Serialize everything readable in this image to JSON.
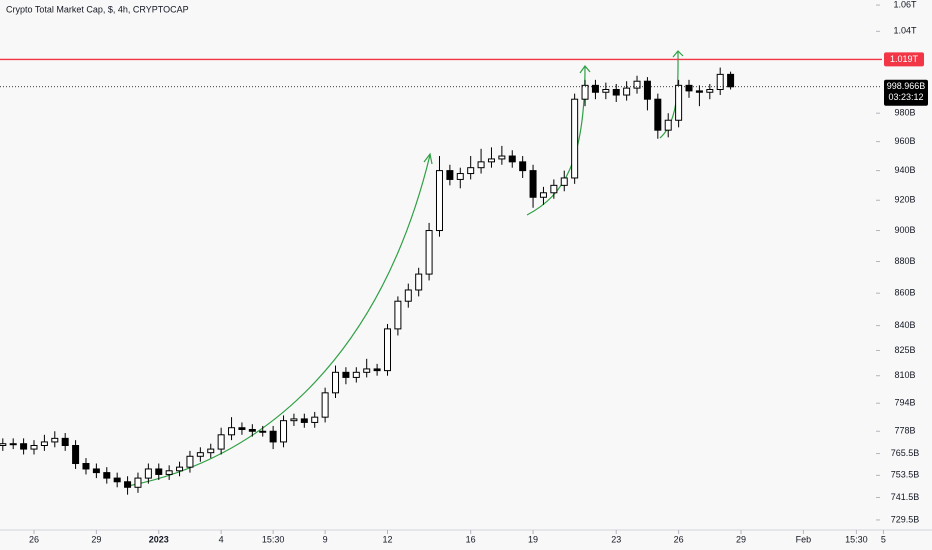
{
  "chart_data": {
    "type": "candlestick",
    "title": "Crypto Total Market Cap, $, 4h, CRYPTOCAP",
    "open": [
      770,
      771,
      771,
      768,
      770,
      772,
      774,
      770,
      760,
      757,
      755,
      752,
      750,
      747,
      752,
      757,
      754,
      756,
      758,
      764,
      766,
      768,
      776,
      780,
      779,
      778,
      778,
      772,
      784,
      785,
      783,
      786,
      800,
      812,
      809,
      812,
      814,
      813,
      838,
      855,
      862,
      872,
      900,
      940,
      934,
      938,
      942,
      946,
      948,
      950,
      946,
      940,
      922,
      925,
      930,
      935,
      990,
      1000,
      995,
      997,
      993,
      998,
      1003,
      990,
      968,
      975,
      1000,
      996,
      995,
      997,
      1008
    ],
    "high": [
      774,
      774,
      774,
      773,
      776,
      778,
      777,
      773,
      763,
      760,
      758,
      755,
      753,
      755,
      760,
      760,
      759,
      761,
      767,
      769,
      771,
      780,
      786,
      783,
      782,
      781,
      781,
      787,
      788,
      788,
      789,
      803,
      816,
      815,
      815,
      820,
      817,
      841,
      858,
      866,
      876,
      905,
      950,
      944,
      942,
      950,
      955,
      956,
      957,
      954,
      950,
      944,
      929,
      934,
      940,
      994,
      1004,
      1004,
      1002,
      1001,
      1003,
      1007,
      1006,
      994,
      980,
      1004,
      1004,
      1000,
      1001,
      1013,
      1010
    ],
    "low": [
      767,
      768,
      765,
      765,
      767,
      769,
      767,
      757,
      754,
      752,
      749,
      747,
      743,
      744,
      749,
      751,
      751,
      753,
      755,
      761,
      763,
      765,
      773,
      776,
      775,
      775,
      768,
      769,
      781,
      780,
      780,
      783,
      797,
      805,
      806,
      809,
      810,
      810,
      834,
      851,
      858,
      868,
      896,
      930,
      928,
      934,
      938,
      942,
      944,
      942,
      935,
      915,
      917,
      921,
      926,
      931,
      985,
      990,
      990,
      988,
      989,
      994,
      982,
      962,
      963,
      970,
      991,
      985,
      990,
      993,
      997
    ],
    "close": [
      771,
      771,
      768,
      770,
      772,
      774,
      770,
      760,
      757,
      755,
      752,
      750,
      747,
      752,
      757,
      754,
      756,
      758,
      764,
      766,
      768,
      776,
      780,
      779,
      778,
      778,
      772,
      784,
      785,
      783,
      786,
      800,
      812,
      809,
      812,
      814,
      813,
      838,
      855,
      862,
      872,
      900,
      940,
      934,
      938,
      942,
      946,
      948,
      950,
      946,
      940,
      922,
      925,
      930,
      935,
      990,
      1000,
      995,
      997,
      993,
      998,
      1003,
      990,
      968,
      975,
      1000,
      996,
      995,
      997,
      1008,
      998.966
    ],
    "ylim": [
      724.2,
      1063.9
    ],
    "log_scale": true,
    "yticks": [
      {
        "value": 1060,
        "label": "1.06T"
      },
      {
        "value": 1040,
        "label": "1.04T"
      },
      {
        "value": 980,
        "label": "980B"
      },
      {
        "value": 960,
        "label": "960B"
      },
      {
        "value": 940,
        "label": "940B"
      },
      {
        "value": 920,
        "label": "920B"
      },
      {
        "value": 900,
        "label": "900B"
      },
      {
        "value": 880,
        "label": "880B"
      },
      {
        "value": 860,
        "label": "860B"
      },
      {
        "value": 840,
        "label": "840B"
      },
      {
        "value": 825,
        "label": "825B"
      },
      {
        "value": 810,
        "label": "810B"
      },
      {
        "value": 794,
        "label": "794B"
      },
      {
        "value": 778,
        "label": "778B"
      },
      {
        "value": 765.5,
        "label": "765.5B"
      },
      {
        "value": 753.5,
        "label": "753.5B"
      },
      {
        "value": 741.5,
        "label": "741.5B"
      },
      {
        "value": 729.5,
        "label": "729.5B"
      }
    ],
    "xlim": [
      -0.27,
      83.6
    ],
    "xticks": [
      {
        "value": 3,
        "label": "26"
      },
      {
        "value": 9,
        "label": "29"
      },
      {
        "value": 15,
        "label": "2023"
      },
      {
        "value": 21,
        "label": "4"
      },
      {
        "value": 26,
        "label": "15:30"
      },
      {
        "value": 31,
        "label": "9"
      },
      {
        "value": 37,
        "label": "12"
      },
      {
        "value": 45,
        "label": "16"
      },
      {
        "value": 51,
        "label": "19"
      },
      {
        "value": 59,
        "label": "23"
      },
      {
        "value": 65,
        "label": "26"
      },
      {
        "value": 71,
        "label": "29"
      },
      {
        "value": 77,
        "label": "Feb"
      },
      {
        "value": 82.1,
        "label": "15:30"
      },
      {
        "value": 84.7,
        "label": "5"
      }
    ],
    "up_color": "#ffffff",
    "down_color": "#000000",
    "border_color": "#000000",
    "horizontal_line": {
      "value": 1019,
      "label": "1.019T",
      "color": "#f23645"
    },
    "price_line": {
      "value": 998.966,
      "label": "998.966B",
      "countdown": "03:23:12",
      "color": "#000000"
    }
  }
}
